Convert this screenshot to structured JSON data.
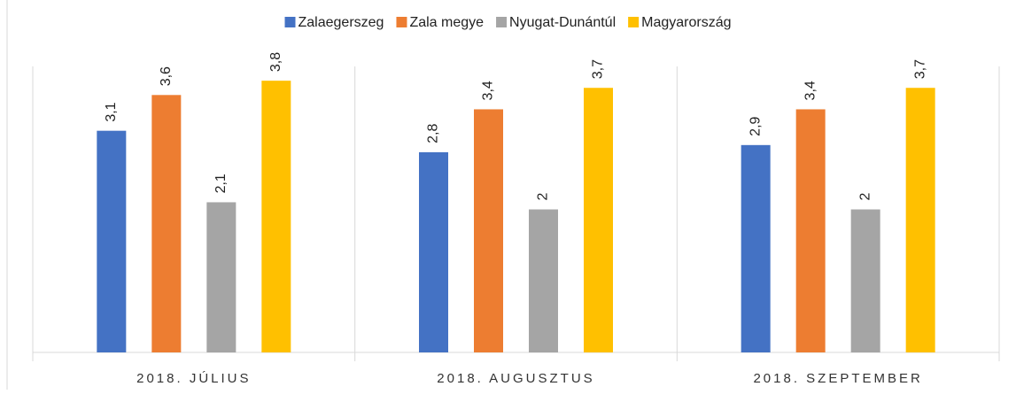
{
  "chart_data": {
    "type": "bar",
    "categories": [
      "2018. JÚLIUS",
      "2018. AUGUSZTUS",
      "2018. SZEPTEMBER"
    ],
    "series": [
      {
        "name": "Zalaegerszeg",
        "color": "#4472c4",
        "values": [
          3.1,
          2.8,
          2.9
        ],
        "value_labels": [
          "3,1",
          "2,8",
          "2,9"
        ]
      },
      {
        "name": "Zala megye",
        "color": "#ed7d31",
        "values": [
          3.6,
          3.4,
          3.4
        ],
        "value_labels": [
          "3,6",
          "3,4",
          "3,4"
        ]
      },
      {
        "name": "Nyugat-Dunántúl",
        "color": "#a5a5a5",
        "values": [
          2.1,
          2,
          2
        ],
        "value_labels": [
          "2,1",
          "2",
          "2"
        ]
      },
      {
        "name": "Magyarország",
        "color": "#ffc000",
        "values": [
          3.8,
          3.7,
          3.7
        ],
        "value_labels": [
          "3,8",
          "3,7",
          "3,7"
        ]
      }
    ],
    "ylim": [
      0,
      4
    ],
    "legend": "top"
  }
}
